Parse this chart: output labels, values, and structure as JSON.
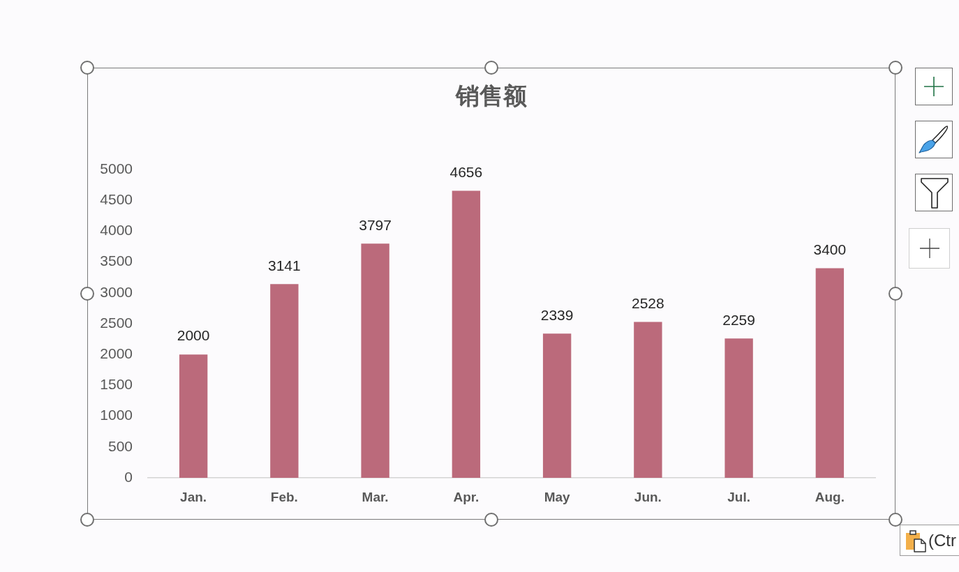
{
  "chart_data": {
    "type": "bar",
    "title": "销售额",
    "categories": [
      "Jan.",
      "Feb.",
      "Mar.",
      "Apr.",
      "May",
      "Jun.",
      "Jul.",
      "Aug."
    ],
    "values": [
      2000,
      3141,
      3797,
      4656,
      2339,
      2528,
      2259,
      3400
    ],
    "color": "#bb6a7b",
    "ylim": [
      0,
      5000
    ],
    "yticks": [
      0,
      500,
      1000,
      1500,
      2000,
      2500,
      3000,
      3500,
      4000,
      4500,
      5000
    ],
    "grid": false,
    "legend": false,
    "data_labels": true,
    "annotations": [
      "(Ctr"
    ]
  }
}
